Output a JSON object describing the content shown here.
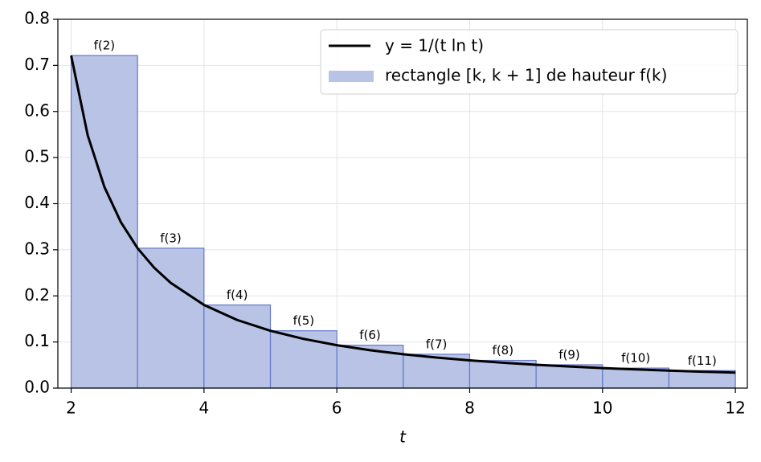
{
  "chart_data": {
    "type": "histogram",
    "xlabel": "t",
    "bins": [
      2,
      3,
      4,
      5,
      6,
      7,
      8,
      9,
      10,
      11,
      12
    ],
    "values": [
      0.7213,
      0.3034,
      0.1803,
      0.1243,
      0.093,
      0.0734,
      0.0601,
      0.0506,
      0.0434,
      0.0379
    ],
    "bar_annotations": [
      "f(2)",
      "f(3)",
      "f(4)",
      "f(5)",
      "f(6)",
      "f(7)",
      "f(8)",
      "f(9)",
      "f(10)",
      "f(11)"
    ],
    "name": "rectangle [k, k + 1] de hauteur f(k)",
    "color": "#b8c3e6",
    "edgecolor": "#6478c8",
    "line": {
      "name": "y = 1/(t ln t)",
      "color": "#000000",
      "x": [
        2,
        2.25,
        2.5,
        2.75,
        3,
        3.25,
        3.5,
        4,
        4.5,
        5,
        5.5,
        6,
        6.5,
        7,
        7.5,
        8,
        8.5,
        9,
        9.5,
        10,
        10.5,
        11,
        11.5,
        12
      ],
      "values": [
        0.7213,
        0.5481,
        0.4365,
        0.3595,
        0.3034,
        0.2611,
        0.2281,
        0.1803,
        0.1477,
        0.1243,
        0.1067,
        0.093,
        0.0822,
        0.0734,
        0.0662,
        0.0601,
        0.055,
        0.0506,
        0.0468,
        0.0434,
        0.0405,
        0.0379,
        0.0356,
        0.0335
      ]
    },
    "xlim": [
      1.8,
      12.18
    ],
    "ylim": [
      0,
      0.8
    ],
    "xticks": [
      2,
      4,
      6,
      8,
      10,
      12
    ],
    "yticks": [
      {
        "value": 0,
        "label": "0.0"
      },
      0.1,
      0.2,
      0.3,
      0.4,
      0.5,
      0.6,
      0.7,
      0.8
    ],
    "grid": true,
    "legend": "upper right"
  }
}
